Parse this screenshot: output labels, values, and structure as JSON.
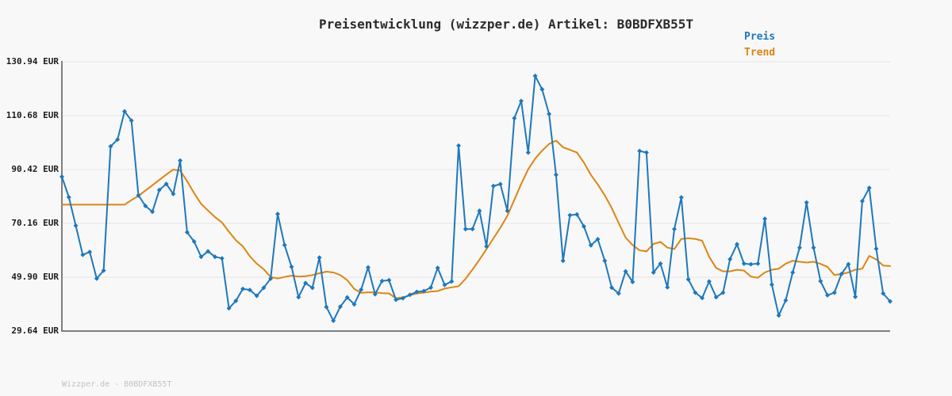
{
  "title": "Preisentwicklung (wizzper.de) Artikel: B0BDFXB55T",
  "legend": {
    "preis_label": "Preis",
    "trend_label": "Trend"
  },
  "watermark": "Wizzper.de - B0BDFXB55T",
  "colors": {
    "preis": "#1e78bc",
    "trend": "#dd8512",
    "grid": "#e3e3e3",
    "axis": "#7f7f7f",
    "title_text": "#2b2b2b",
    "tick_text": "#1c1c1c",
    "watermark_text": "#c2c2c2",
    "background": "#f8f8f8"
  },
  "chart_data": {
    "type": "line",
    "title": "Preisentwicklung (wizzper.de) Artikel: B0BDFXB55T",
    "xlabel": "",
    "ylabel": "",
    "unit": "EUR",
    "ylim": [
      29.64,
      130.94
    ],
    "y_ticks": [
      {
        "label": "130.94 EUR",
        "value": 130.94
      },
      {
        "label": "110.68 EUR",
        "value": 110.68
      },
      {
        "label": "90.42 EUR",
        "value": 90.42
      },
      {
        "label": "70.16 EUR",
        "value": 70.16
      },
      {
        "label": "49.90 EUR",
        "value": 49.9
      },
      {
        "label": "29.64 EUR",
        "value": 29.64
      }
    ],
    "grid": "horizontal",
    "legend_position": "top-right",
    "series": [
      {
        "name": "Preis",
        "color": "#1e78bc",
        "marker": "diamond",
        "values": [
          87.7,
          80.0,
          69.3,
          58.3,
          59.4,
          49.4,
          52.4,
          99.1,
          101.7,
          112.3,
          108.8,
          80.7,
          76.7,
          74.5,
          82.7,
          85.0,
          81.2,
          93.8,
          66.8,
          63.3,
          57.6,
          59.6,
          57.6,
          57.0,
          38.2,
          41.0,
          45.5,
          45.1,
          42.9,
          45.9,
          49.4,
          73.7,
          62.0,
          53.8,
          42.4,
          47.7,
          45.9,
          57.3,
          38.7,
          33.5,
          38.8,
          42.3,
          39.7,
          45.2,
          53.6,
          43.5,
          48.5,
          48.8,
          41.4,
          42.0,
          43.3,
          44.4,
          44.7,
          46.0,
          53.4,
          47.0,
          48.3,
          99.4,
          68.0,
          68.0,
          74.9,
          61.5,
          84.2,
          84.9,
          74.9,
          109.7,
          116.2,
          96.8,
          125.6,
          120.6,
          111.3,
          88.4,
          56.1,
          73.2,
          73.5,
          69.0,
          61.9,
          64.2,
          56.1,
          46.0,
          43.8,
          52.1,
          48.1,
          97.4,
          96.8,
          51.7,
          55.0,
          46.1,
          68.0,
          79.9,
          49.1,
          44.1,
          42.1,
          48.3,
          42.4,
          44.1,
          56.7,
          62.3,
          55.0,
          54.8,
          55.0,
          71.9,
          47.1,
          35.5,
          41.2,
          51.7,
          61.0,
          78.0,
          61.0,
          48.4,
          43.1,
          44.1,
          51.1,
          54.8,
          42.5,
          78.5,
          83.5,
          60.6,
          43.8,
          40.8
        ]
      },
      {
        "name": "Trend",
        "color": "#dd8512",
        "marker": "none",
        "values": [
          77.2,
          77.2,
          77.2,
          77.2,
          77.2,
          77.2,
          77.2,
          77.2,
          77.2,
          77.2,
          78.9,
          80.5,
          82.5,
          84.5,
          86.5,
          88.5,
          90.4,
          90.0,
          86.0,
          81.5,
          77.5,
          75.0,
          72.5,
          70.5,
          67.0,
          63.8,
          61.5,
          57.8,
          55.0,
          52.9,
          50.0,
          49.4,
          50.0,
          50.5,
          50.1,
          50.3,
          50.7,
          51.4,
          52.0,
          51.7,
          50.7,
          48.8,
          45.5,
          44.0,
          44.2,
          44.2,
          43.9,
          43.8,
          42.0,
          42.3,
          43.1,
          43.8,
          44.1,
          44.5,
          44.7,
          45.6,
          46.1,
          46.5,
          49.3,
          52.8,
          56.5,
          60.5,
          64.5,
          68.5,
          73.0,
          79.0,
          85.0,
          90.5,
          94.5,
          97.5,
          100.0,
          101.3,
          98.8,
          97.8,
          96.8,
          93.0,
          88.4,
          84.8,
          80.7,
          75.9,
          70.3,
          64.8,
          62.0,
          60.0,
          59.6,
          62.4,
          63.2,
          61.0,
          60.5,
          64.3,
          64.6,
          64.3,
          63.6,
          57.6,
          53.4,
          52.1,
          52.1,
          52.7,
          52.4,
          50.1,
          49.7,
          51.7,
          52.7,
          53.1,
          55.0,
          56.1,
          55.7,
          55.4,
          55.7,
          54.9,
          53.8,
          50.7,
          51.1,
          51.7,
          52.7,
          53.1,
          57.9,
          56.6,
          54.3,
          54.1
        ]
      }
    ]
  }
}
